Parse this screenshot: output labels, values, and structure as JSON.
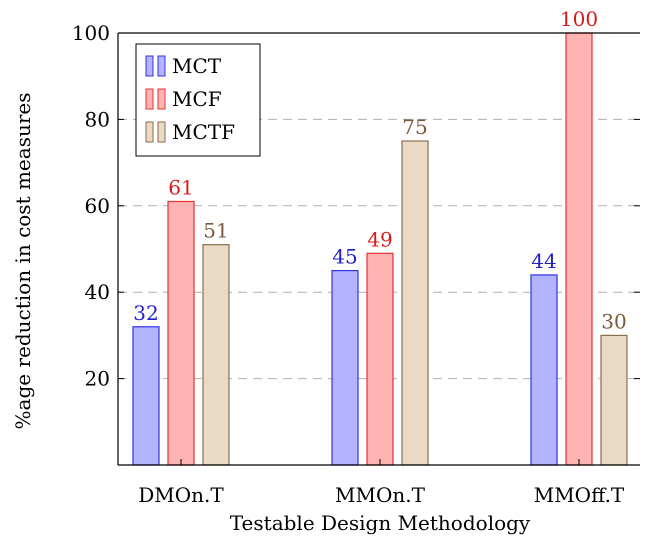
{
  "chart_data": {
    "type": "bar",
    "categories": [
      "DMOn.T",
      "MMOn.T",
      "MMOff.T"
    ],
    "series": [
      {
        "name": "MCT",
        "values": [
          32,
          45,
          44
        ],
        "fill": "#b3b3ff",
        "stroke": "#3333e6",
        "label_color": "#1f1fd1"
      },
      {
        "name": "MCF",
        "values": [
          61,
          49,
          100
        ],
        "fill": "#ffb3b3",
        "stroke": "#e63333",
        "label_color": "#d91a1a"
      },
      {
        "name": "MCTF",
        "values": [
          51,
          75,
          30
        ],
        "fill": "#ead9c4",
        "stroke": "#8a6d4c",
        "label_color": "#7a5a3a"
      }
    ],
    "xlabel": "Testable Design Methodology",
    "ylabel": "%age reduction in cost measures",
    "ylim": [
      0,
      100
    ],
    "yticks": [
      20,
      40,
      60,
      80,
      100
    ],
    "grid": "horizontal dashed",
    "legend_position": "top-left"
  }
}
